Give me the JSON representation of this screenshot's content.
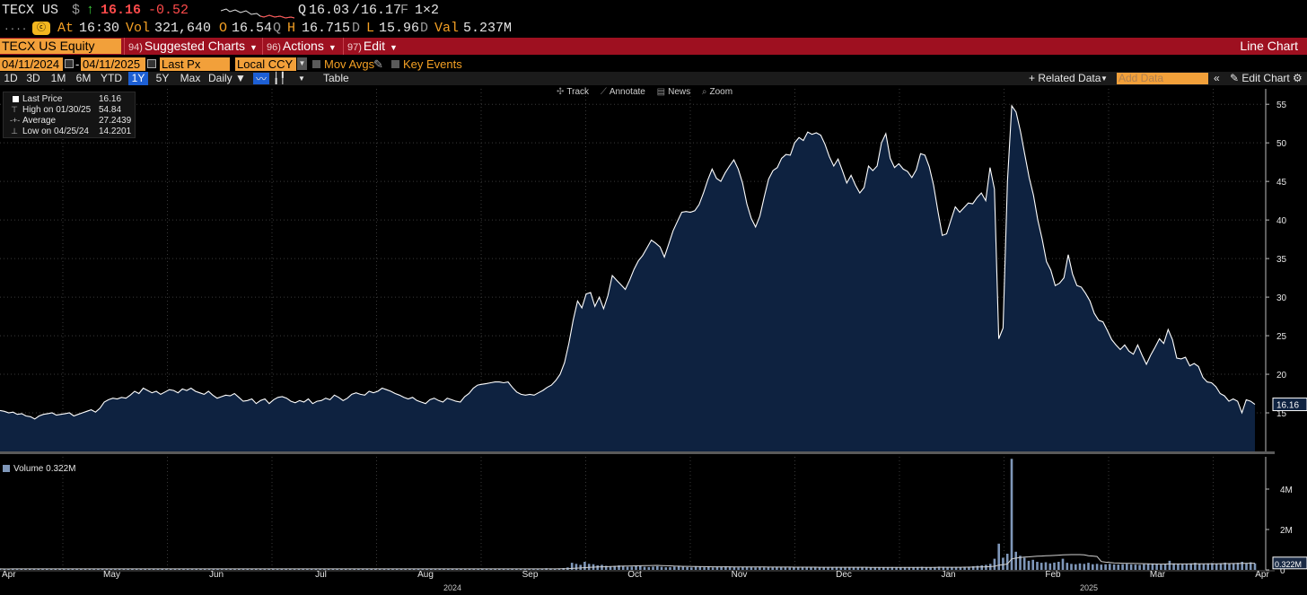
{
  "quote": {
    "ticker": "TECX US",
    "currency": "$",
    "direction_arrow": "↑",
    "last": "16.16",
    "change": "-0.52",
    "quote_bid_prefix": "Q",
    "bid": "16.03",
    "ask": "16.17",
    "quote_source": "F",
    "size": "1×2",
    "row2_dots": "....",
    "at_label": "At",
    "time": "16:30",
    "vol_label": "Vol",
    "volume": "321,640",
    "open_label": "O",
    "open": "16.54",
    "open_src": "Q",
    "high_label": "H",
    "high": "16.715",
    "high_src": "D",
    "low_label": "L",
    "low": "15.96",
    "low_src": "D",
    "val_label": "Val",
    "value": "5.237M",
    "sq_icon_text": "ⓒ"
  },
  "menu": {
    "security": "TECX US Equity",
    "items": [
      {
        "num": "94)",
        "label": "Suggested Charts"
      },
      {
        "num": "96)",
        "label": "Actions"
      },
      {
        "num": "97)",
        "label": "Edit"
      }
    ],
    "chart_type": "Line Chart"
  },
  "params": {
    "start_date": "04/11/2024",
    "date_sep": "-",
    "end_date": "04/11/2025",
    "field": "Last Px",
    "currency": "Local CCY",
    "mov_avgs": "Mov Avgs",
    "key_events": "Key Events"
  },
  "periods": [
    "1D",
    "3D",
    "1M",
    "6M",
    "YTD",
    "1Y",
    "5Y",
    "Max"
  ],
  "active_period": "1Y",
  "toolbar": {
    "frequency": "Daily ▼",
    "table": "Table",
    "related_data": "+ Related Data",
    "add_data_placeholder": "Add Data",
    "edit_chart": "Edit Chart"
  },
  "chart_tools": [
    "Track",
    "Annotate",
    "News",
    "Zoom"
  ],
  "legend": {
    "rows": [
      {
        "label": "Last Price",
        "value": "16.16"
      },
      {
        "label": "High on 01/30/25",
        "value": "54.84"
      },
      {
        "label": "Average",
        "value": "27.2439"
      },
      {
        "label": "Low on 04/25/24",
        "value": "14.2201"
      }
    ]
  },
  "volume_legend": "Volume 0.322M",
  "colors": {
    "area_fill": "#0e2240",
    "line": "#ffffff",
    "volume_bar": "#7f97b9",
    "menu_bar": "#9e1020",
    "field_orange": "#f2a03a"
  },
  "chart_data": [
    {
      "type": "area",
      "series": [
        {
          "name": "Last Price",
          "values": [
            15.3,
            15.2,
            15.0,
            15.1,
            14.8,
            14.9,
            14.6,
            14.5,
            14.2,
            14.6,
            14.8,
            14.9,
            15.0,
            14.7,
            14.8,
            14.9,
            15.0,
            14.6,
            14.8,
            15.0,
            15.2,
            15.4,
            15.1,
            15.6,
            16.4,
            16.7,
            16.9,
            16.8,
            17.0,
            16.9,
            17.3,
            17.8,
            17.5,
            18.2,
            17.9,
            17.6,
            17.8,
            17.4,
            17.7,
            18.0,
            17.9,
            17.6,
            18.1,
            17.9,
            18.2,
            17.8,
            17.6,
            17.4,
            17.8,
            17.3,
            16.9,
            17.1,
            17.3,
            17.2,
            17.5,
            17.0,
            16.5,
            16.6,
            16.8,
            16.2,
            16.6,
            16.8,
            16.2,
            16.7,
            17.0,
            17.1,
            16.9,
            16.5,
            16.3,
            16.6,
            16.4,
            16.8,
            16.2,
            16.5,
            16.6,
            16.9,
            16.7,
            17.3,
            17.0,
            16.6,
            16.9,
            17.4,
            17.6,
            17.4,
            17.3,
            17.8,
            17.6,
            17.8,
            18.2,
            18.0,
            17.8,
            17.5,
            17.3,
            17.0,
            16.8,
            17.0,
            16.6,
            16.4,
            16.2,
            16.7,
            16.9,
            16.6,
            16.4,
            16.9,
            16.7,
            16.5,
            16.4,
            17.1,
            17.5,
            18.2,
            18.6,
            18.7,
            18.8,
            18.9,
            19.0,
            19.0,
            18.9,
            19.0,
            18.3,
            17.7,
            17.4,
            17.3,
            17.4,
            17.3,
            17.6,
            17.9,
            18.3,
            18.6,
            19.2,
            20.0,
            21.5,
            24.0,
            27.0,
            29.5,
            28.6,
            30.4,
            30.6,
            28.8,
            30.0,
            28.5,
            30.2,
            32.8,
            32.2,
            31.6,
            31.0,
            32.2,
            33.6,
            34.7,
            35.4,
            36.4,
            37.4,
            37.0,
            36.5,
            35.2,
            36.9,
            38.6,
            39.8,
            41.0,
            41.1,
            41.0,
            41.2,
            42.0,
            43.5,
            45.2,
            46.6,
            45.4,
            45.0,
            46.1,
            47.0,
            47.8,
            46.6,
            44.8,
            42.1,
            40.2,
            39.1,
            40.5,
            43.0,
            45.3,
            46.4,
            46.8,
            48.0,
            48.5,
            48.4,
            50.0,
            50.7,
            50.3,
            51.4,
            51.1,
            51.3,
            51.0,
            49.8,
            48.2,
            47.0,
            47.9,
            46.4,
            44.8,
            45.8,
            44.5,
            43.5,
            44.2,
            47.0,
            46.4,
            47.0,
            50.0,
            51.2,
            48.0,
            46.8,
            47.3,
            46.6,
            46.3,
            45.5,
            46.5,
            48.6,
            48.4,
            46.9,
            44.5,
            41.1,
            38.0,
            38.2,
            40.0,
            41.7,
            41.0,
            41.6,
            42.2,
            42.1,
            42.9,
            43.5,
            42.5,
            46.8,
            44.0,
            24.6,
            26.0,
            45.0,
            54.8,
            54.0,
            51.5,
            48.5,
            45.5,
            43.2,
            40.0,
            37.5,
            34.6,
            33.5,
            31.5,
            31.8,
            32.5,
            35.5,
            33.0,
            31.5,
            31.3,
            30.5,
            29.5,
            27.9,
            27.0,
            26.8,
            25.7,
            24.5,
            23.8,
            23.2,
            23.8,
            23.0,
            22.6,
            23.8,
            22.5,
            21.3,
            22.5,
            23.5,
            24.6,
            24.0,
            25.8,
            24.5,
            22.1,
            22.0,
            22.2,
            21.1,
            21.4,
            21.0,
            19.6,
            19.0,
            18.9,
            18.4,
            17.5,
            17.2,
            16.5,
            16.8,
            16.5,
            15.0,
            16.7,
            16.5,
            16.1
          ]
        }
      ],
      "x_tick_labels": [
        "Apr",
        "May",
        "Jun",
        "Jul",
        "Aug",
        "Sep",
        "Oct",
        "Nov",
        "Dec",
        "Jan",
        "Feb",
        "Mar",
        "Apr"
      ],
      "year_labels": [
        "2024",
        "2025"
      ],
      "y_ticks": [
        15,
        20,
        25,
        30,
        35,
        40,
        45,
        50,
        55
      ],
      "ylim": [
        10,
        57
      ],
      "last_value_label": "16.16",
      "grid": true
    },
    {
      "type": "bar",
      "series": [
        {
          "name": "Volume",
          "values": [
            0.05,
            0.04,
            0.05,
            0.06,
            0.04,
            0.05,
            0.04,
            0.05,
            0.06,
            0.05,
            0.04,
            0.05,
            0.04,
            0.05,
            0.05,
            0.04,
            0.05,
            0.06,
            0.05,
            0.04,
            0.05,
            0.05,
            0.04,
            0.05,
            0.06,
            0.05,
            0.05,
            0.04,
            0.05,
            0.05,
            0.06,
            0.05,
            0.04,
            0.05,
            0.05,
            0.04,
            0.05,
            0.06,
            0.05,
            0.04,
            0.05,
            0.05,
            0.04,
            0.05,
            0.05,
            0.04,
            0.05,
            0.06,
            0.05,
            0.04,
            0.05,
            0.05,
            0.04,
            0.05,
            0.05,
            0.04,
            0.05,
            0.06,
            0.05,
            0.04,
            0.05,
            0.05,
            0.04,
            0.05,
            0.05,
            0.04,
            0.05,
            0.06,
            0.05,
            0.04,
            0.05,
            0.05,
            0.04,
            0.05,
            0.05,
            0.04,
            0.05,
            0.06,
            0.05,
            0.04,
            0.05,
            0.05,
            0.04,
            0.05,
            0.05,
            0.04,
            0.05,
            0.06,
            0.05,
            0.04,
            0.05,
            0.05,
            0.04,
            0.05,
            0.05,
            0.04,
            0.05,
            0.06,
            0.05,
            0.04,
            0.05,
            0.05,
            0.04,
            0.05,
            0.05,
            0.04,
            0.05,
            0.06,
            0.05,
            0.04,
            0.05,
            0.05,
            0.04,
            0.05,
            0.05,
            0.04,
            0.05,
            0.06,
            0.05,
            0.04,
            0.05,
            0.05,
            0.04,
            0.05,
            0.05,
            0.04,
            0.05,
            0.06,
            0.08,
            0.07,
            0.05,
            0.06,
            0.09,
            0.12,
            0.35,
            0.3,
            0.25,
            0.4,
            0.3,
            0.28,
            0.22,
            0.25,
            0.2,
            0.18,
            0.2,
            0.22,
            0.18,
            0.15,
            0.16,
            0.18,
            0.2,
            0.15,
            0.14,
            0.16,
            0.18,
            0.15,
            0.13,
            0.14,
            0.16,
            0.18,
            0.15,
            0.14,
            0.12,
            0.16,
            0.15,
            0.13,
            0.14,
            0.12,
            0.15,
            0.16,
            0.18,
            0.14,
            0.13,
            0.12,
            0.15,
            0.14,
            0.13,
            0.12,
            0.14,
            0.12,
            0.13,
            0.12,
            0.14,
            0.15,
            0.13,
            0.12,
            0.11,
            0.13,
            0.12,
            0.14,
            0.15,
            0.13,
            0.12,
            0.11,
            0.12,
            0.13,
            0.14,
            0.12,
            0.13,
            0.12,
            0.11,
            0.12,
            0.14,
            0.13,
            0.12,
            0.11,
            0.12,
            0.13,
            0.12,
            0.14,
            0.13,
            0.12,
            0.11,
            0.12,
            0.13,
            0.14,
            0.15,
            0.13,
            0.12,
            0.14,
            0.16,
            0.15,
            0.13,
            0.12,
            0.14,
            0.13,
            0.15,
            0.16,
            0.18,
            0.2,
            0.22,
            0.25,
            0.3,
            0.55,
            1.3,
            0.6,
            0.8,
            5.5,
            0.9,
            0.7,
            0.6,
            0.45,
            0.5,
            0.4,
            0.35,
            0.38,
            0.32,
            0.36,
            0.4,
            0.55,
            0.35,
            0.3,
            0.28,
            0.32,
            0.3,
            0.35,
            0.28,
            0.3,
            0.26,
            0.28,
            0.3,
            0.27,
            0.26,
            0.28,
            0.3,
            0.27,
            0.26,
            0.25,
            0.28,
            0.3,
            0.32,
            0.28,
            0.26,
            0.3,
            0.45,
            0.32,
            0.3,
            0.28,
            0.3,
            0.32,
            0.35,
            0.3,
            0.28,
            0.32,
            0.34,
            0.3,
            0.32,
            0.36,
            0.3,
            0.32,
            0.35,
            0.4,
            0.34,
            0.38,
            0.32
          ]
        }
      ],
      "y_ticks": [
        0,
        2,
        4
      ],
      "y_tick_labels": [
        "0",
        "2M",
        "4M"
      ],
      "ylim": [
        0,
        5.6
      ],
      "last_value_label": "0.322M"
    }
  ]
}
